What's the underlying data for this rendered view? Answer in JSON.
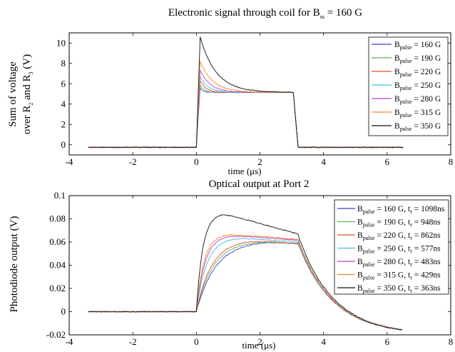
{
  "chart_data": [
    {
      "type": "line",
      "title_main": "Electronic signal through coil for B",
      "title_sub": "ss",
      "title_tail": " = 160 G",
      "ylabel_line1": "Sum of voltage",
      "ylabel_line2": [
        "over R",
        "2",
        " and R",
        "3",
        " (V)"
      ],
      "xlabel": "time (μs)",
      "xlim": [
        -4,
        8
      ],
      "ylim": [
        -1,
        11
      ],
      "xticks": [
        -4,
        -2,
        0,
        2,
        4,
        6,
        8
      ],
      "yticks": [
        0,
        2,
        4,
        6,
        8,
        10
      ],
      "xtick_labels": [
        "-4",
        "-2",
        "0",
        "2",
        "4",
        "6",
        "8"
      ],
      "ytick_labels": [
        "0",
        "2",
        "4",
        "6",
        "8",
        "10"
      ],
      "legend": "top-right",
      "series": [
        {
          "legend_main": "B",
          "legend_sub": "pulse",
          "legend_tail": " = 160 G",
          "color": "#3c3cd2",
          "peak": 5.6,
          "decay": 0.08
        },
        {
          "legend_main": "B",
          "legend_sub": "pulse",
          "legend_tail": " = 190 G",
          "color": "#5cb85c",
          "peak": 5.9,
          "decay": 0.12
        },
        {
          "legend_main": "B",
          "legend_sub": "pulse",
          "legend_tail": " = 220 G",
          "color": "#e0502a",
          "peak": 6.3,
          "decay": 0.18
        },
        {
          "legend_main": "B",
          "legend_sub": "pulse",
          "legend_tail": " = 250 G",
          "color": "#44bfe0",
          "peak": 6.7,
          "decay": 0.25
        },
        {
          "legend_main": "B",
          "legend_sub": "pulse",
          "legend_tail": " = 280 G",
          "color": "#c040c0",
          "peak": 7.3,
          "decay": 0.32
        },
        {
          "legend_main": "B",
          "legend_sub": "pulse",
          "legend_tail": " = 315 G",
          "color": "#f08a30",
          "peak": 8.2,
          "decay": 0.4
        },
        {
          "legend_main": "B",
          "legend_sub": "pulse",
          "legend_tail": " = 350 G",
          "color": "#111111",
          "peak": 10.6,
          "decay": 0.5
        }
      ],
      "baseline": -0.25,
      "plateau": 5.15,
      "rise_start": 0.0,
      "fall_start": 3.05,
      "fall_end": 3.2,
      "x_range": [
        -3.4,
        6.5
      ]
    },
    {
      "type": "line",
      "title": "Optical output at Port 2",
      "ylabel": "Photodiode output (V)",
      "xlabel": "time (μs)",
      "xlim": [
        -4,
        8
      ],
      "ylim": [
        -0.02,
        0.1
      ],
      "xticks": [
        -4,
        -2,
        0,
        2,
        4,
        6,
        8
      ],
      "yticks": [
        -0.02,
        0,
        0.02,
        0.04,
        0.06,
        0.08,
        0.1
      ],
      "xtick_labels": [
        "-4",
        "-2",
        "0",
        "2",
        "4",
        "6",
        "8"
      ],
      "ytick_labels": [
        "-0.02",
        "0",
        "0.02",
        "0.04",
        "0.06",
        "0.08",
        "0.1"
      ],
      "legend": "top-right",
      "series": [
        {
          "legend_main": "B",
          "legend_sub": "pulse",
          "legend_mid": " = 160 G, t",
          "legend_sub2": "r",
          "legend_tail": " = 1098ns",
          "color": "#3c3cd2",
          "rise": 1.098,
          "peak": 0.061,
          "peak_t": 2.2
        },
        {
          "legend_main": "B",
          "legend_sub": "pulse",
          "legend_mid": " = 190 G, t",
          "legend_sub2": "r",
          "legend_tail": " = 948ns",
          "color": "#5cb85c",
          "rise": 0.948,
          "peak": 0.061,
          "peak_t": 2.0
        },
        {
          "legend_main": "B",
          "legend_sub": "pulse",
          "legend_mid": " = 220 G, t",
          "legend_sub2": "r",
          "legend_tail": " = 862ns",
          "color": "#e0502a",
          "rise": 0.862,
          "peak": 0.062,
          "peak_t": 1.6
        },
        {
          "legend_main": "B",
          "legend_sub": "pulse",
          "legend_mid": " = 250 G, t",
          "legend_sub2": "r",
          "legend_tail": " = 577ns",
          "color": "#44bfe0",
          "rise": 0.577,
          "peak": 0.064,
          "peak_t": 1.2
        },
        {
          "legend_main": "B",
          "legend_sub": "pulse",
          "legend_mid": " = 280 G, t",
          "legend_sub2": "r",
          "legend_tail": " = 483ns",
          "color": "#c040c0",
          "rise": 0.483,
          "peak": 0.066,
          "peak_t": 1.0
        },
        {
          "legend_main": "B",
          "legend_sub": "pulse",
          "legend_mid": " = 315 G, t",
          "legend_sub2": "r",
          "legend_tail": " = 429ns",
          "color": "#f08a30",
          "rise": 0.429,
          "peak": 0.067,
          "peak_t": 0.9
        },
        {
          "legend_main": "B",
          "legend_sub": "pulse",
          "legend_mid": " = 350 G, t",
          "legend_sub2": "r",
          "legend_tail": " = 363ns",
          "color": "#111111",
          "rise": 0.363,
          "peak": 0.085,
          "peak_t": 0.8
        }
      ],
      "baseline": 0.0,
      "x_range": [
        -3.4,
        6.5
      ]
    }
  ]
}
